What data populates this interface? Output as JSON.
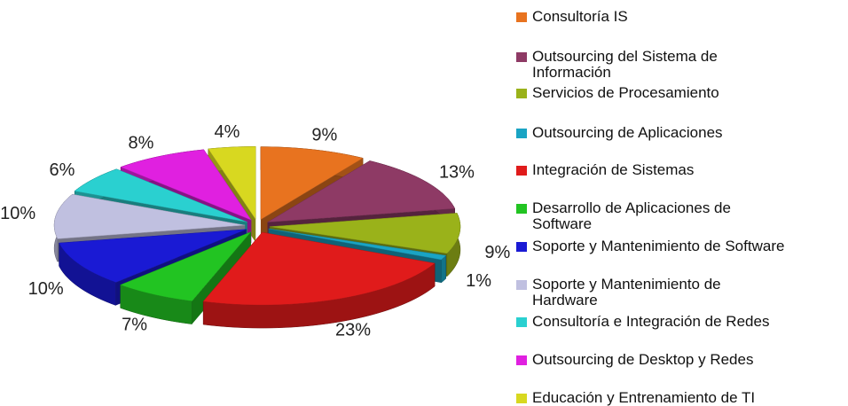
{
  "chart_data": {
    "type": "pie",
    "categories": [
      "Consultoría IS",
      "Outsourcing del Sistema de Información",
      "Servicios de Procesamiento",
      "Outsourcing de Aplicaciones",
      "Integración de Sistemas",
      "Desarrollo de Aplicaciones de Software",
      "Soporte y Mantenimiento de Software",
      "Soporte y Mantenimiento de Hardware",
      "Consultoría e Integración de Redes",
      "Outsourcing de Desktop y Redes",
      "Educación y Entrenamiento de TI"
    ],
    "values": [
      9,
      13,
      9,
      1,
      23,
      7,
      10,
      10,
      6,
      8,
      4
    ],
    "value_labels": [
      "9%",
      "13%",
      "9%",
      "1%",
      "23%",
      "7%",
      "10%",
      "10%",
      "6%",
      "8%",
      "4%"
    ],
    "colors": [
      "#e8731f",
      "#8e3a65",
      "#9ab21a",
      "#1aa4c4",
      "#e01b1b",
      "#22c422",
      "#1a1ad4",
      "#c0c0e0",
      "#2ad0d0",
      "#e020e0",
      "#d8d820"
    ],
    "legend": "right"
  }
}
